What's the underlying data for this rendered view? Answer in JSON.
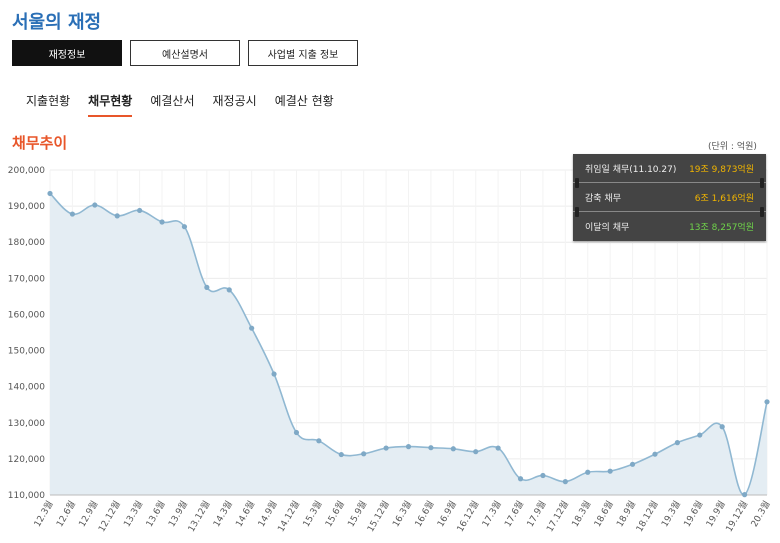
{
  "page": {
    "title": "서울의 재정",
    "top_buttons": [
      "재정정보",
      "예산설명서",
      "사업별 지출 정보"
    ],
    "tabs": [
      "지출현황",
      "채무현황",
      "예결산서",
      "재정공시",
      "예결산 현황"
    ],
    "section_title": "채무추이",
    "unit_label": "(단위 : 억원)"
  },
  "info_box": {
    "rows": [
      {
        "label": "취임일 채무(11.10.27)",
        "value": "19조 9,873억원",
        "color": "#f0b400"
      },
      {
        "label": "감축 채무",
        "value": "6조 1,616억원",
        "color": "#f0b400"
      },
      {
        "label": "이달의 채무",
        "value": "13조 8,257억원",
        "color": "#6fd34a"
      }
    ]
  },
  "chart_data": {
    "type": "area",
    "ylim": [
      110000,
      200000
    ],
    "yticks": [
      "200,000",
      "190,000",
      "180,000",
      "170,000",
      "160,000",
      "150,000",
      "140,000",
      "130,000",
      "120,000",
      "110,000"
    ],
    "categories": [
      "12.3월",
      "12.6월",
      "12.9월",
      "12.12월",
      "13.3월",
      "13.6월",
      "13.9월",
      "13.12월",
      "14.3월",
      "14.6월",
      "14.9월",
      "14.12월",
      "15.3월",
      "15.6월",
      "15.9월",
      "15.12월",
      "16.3월",
      "16.6월",
      "16.9월",
      "16.12월",
      "17.3월",
      "17.6월",
      "17.9월",
      "17.12월",
      "18.3월",
      "18.6월",
      "18.9월",
      "18.12월",
      "19.3월",
      "19.6월",
      "19.9월",
      "19.12월",
      "20.3월"
    ],
    "values": [
      193500,
      187800,
      190300,
      187300,
      188800,
      185600,
      184300,
      167500,
      166800,
      156200,
      143500,
      127300,
      125000,
      121200,
      121400,
      123000,
      123400,
      123100,
      122800,
      122000,
      123000,
      114500,
      115400,
      113700,
      116300,
      116600,
      118500,
      121300,
      124500,
      126600,
      128900,
      110100,
      135800
    ],
    "line_color": "#90b8d2",
    "fill_color": "#e4edf3"
  }
}
